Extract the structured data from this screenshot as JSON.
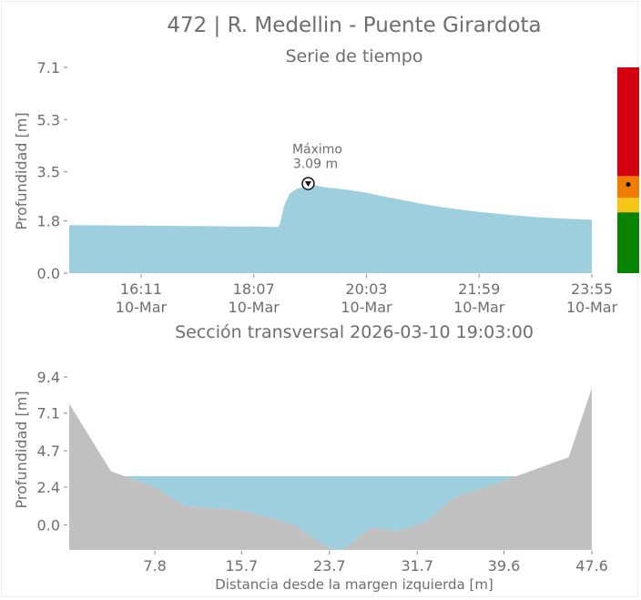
{
  "title": "472 | R. Medellin - Puente Girardota",
  "chart_data": [
    {
      "type": "area",
      "title": "Serie de tiempo",
      "ylabel": "Profundidad [m]",
      "xlabel": "",
      "ylim": [
        0,
        7.1
      ],
      "yticks": [
        "0.0",
        "1.8",
        "3.5",
        "5.3",
        "7.1"
      ],
      "xticks": [
        {
          "time": "16:11",
          "date": "10-Mar"
        },
        {
          "time": "18:07",
          "date": "10-Mar"
        },
        {
          "time": "20:03",
          "date": "10-Mar"
        },
        {
          "time": "21:59",
          "date": "10-Mar"
        },
        {
          "time": "23:55",
          "date": "10-Mar"
        }
      ],
      "x_range": [
        "2026-03-10 14:57",
        "2026-03-10 23:55"
      ],
      "series": [
        {
          "color": "#9ecfde",
          "x": [
            "14:57",
            "15:30",
            "16:11",
            "16:45",
            "17:20",
            "17:50",
            "18:07",
            "18:20",
            "18:32",
            "18:34",
            "18:38",
            "18:44",
            "18:52",
            "19:03",
            "19:10",
            "19:20",
            "19:30",
            "19:45",
            "20:03",
            "20:20",
            "20:40",
            "21:00",
            "21:20",
            "21:40",
            "21:59",
            "22:30",
            "23:00",
            "23:30",
            "23:55"
          ],
          "values": [
            1.66,
            1.65,
            1.64,
            1.63,
            1.62,
            1.61,
            1.61,
            1.6,
            1.59,
            1.7,
            2.3,
            2.75,
            2.92,
            3.0,
            3.03,
            2.96,
            2.93,
            2.87,
            2.77,
            2.65,
            2.52,
            2.39,
            2.28,
            2.19,
            2.11,
            2.01,
            1.93,
            1.88,
            1.84
          ]
        }
      ],
      "annotation": {
        "label": "Máximo",
        "value_text": "3.09 m",
        "x": "19:03",
        "y": 3.09
      },
      "alert_bar": [
        {
          "from": 0,
          "to": 2.1,
          "color": "#078400"
        },
        {
          "from": 2.1,
          "to": 2.6,
          "color": "#f5c518"
        },
        {
          "from": 2.6,
          "to": 3.35,
          "color": "#f07c00"
        },
        {
          "from": 3.35,
          "to": 7.1,
          "color": "#d4000f"
        }
      ],
      "alert_marker": 3.09
    },
    {
      "type": "area",
      "title": "Sección transversal 2026-03-10 19:03:00",
      "xlabel": "Distancia desde la margen izquierda [m]",
      "ylabel": "Profundidad [m]",
      "xlim": [
        0,
        47.6
      ],
      "ylim": [
        -1.6,
        9.4
      ],
      "xticks": [
        "7.8",
        "15.7",
        "23.7",
        "31.7",
        "39.6",
        "47.6"
      ],
      "yticks": [
        "0.0",
        "2.4",
        "4.7",
        "7.1",
        "9.4"
      ],
      "water_level": 3.09,
      "water_color": "#9ecfde",
      "ground_color": "#c0c0c0",
      "profile": {
        "x": [
          0,
          3.8,
          7.8,
          10.5,
          15.7,
          20.5,
          23.7,
          24.8,
          27.5,
          30.0,
          32.5,
          35.0,
          39.6,
          45.5,
          47.6
        ],
        "y": [
          7.7,
          3.4,
          2.4,
          1.2,
          0.9,
          0.0,
          -1.5,
          -1.6,
          -0.2,
          -0.4,
          0.2,
          1.7,
          2.8,
          4.3,
          8.7
        ]
      }
    }
  ]
}
